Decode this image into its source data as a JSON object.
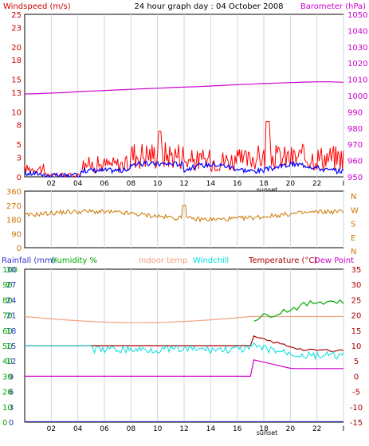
{
  "chart_data": [
    {
      "type": "line",
      "title": "24 hour graph day : 04 October 2008",
      "left_axis_label": "Windspeed (m/s)",
      "right_axis_label": "Barometer (hPa)",
      "left_ticks": [
        "25",
        "23",
        "20",
        "18",
        "15",
        "13",
        "10",
        "8",
        "5",
        "3",
        "0"
      ],
      "right_ticks": [
        "1050",
        "1040",
        "1030",
        "1020",
        "1010",
        "1000",
        "990",
        "980",
        "970",
        "960",
        "950"
      ],
      "x_ticks": [
        "02",
        "04",
        "06",
        "08",
        "10",
        "12",
        "14",
        "16",
        "18",
        "20",
        "22",
        "I"
      ],
      "marker_label": "sunset",
      "ylim_left": [
        0,
        25
      ],
      "ylim_right": [
        950,
        1050
      ],
      "series": [
        {
          "name": "Windspeed",
          "color": "#ff0000"
        },
        {
          "name": "Average windspeed",
          "color": "#0000ff"
        },
        {
          "name": "Barometer",
          "color": "#cc00cc",
          "values": [
            1001.0,
            1001.2,
            1001.5,
            1001.9,
            1002.4,
            1002.8,
            1003.1,
            1003.5,
            1003.8,
            1004.2,
            1004.5,
            1004.9,
            1005.2,
            1005.5,
            1005.9,
            1006.3,
            1006.7,
            1007.0,
            1007.4,
            1007.7,
            1008.0,
            1008.3,
            1008.5,
            1008.5,
            1008.2
          ]
        }
      ]
    },
    {
      "type": "line",
      "left_ticks": [
        "360",
        "270",
        "180",
        "90",
        "0"
      ],
      "right_ticks": [
        "N",
        "W",
        "S",
        "E",
        "N"
      ],
      "ylim": [
        0,
        360
      ],
      "series": [
        {
          "name": "Wind direction",
          "color": "#cc7700"
        }
      ]
    },
    {
      "type": "line",
      "legend": [
        {
          "label": "Rainfall (mm)",
          "color": "#3333cc"
        },
        {
          "label": "Humidity %",
          "color": "#00aa00"
        },
        {
          "label": "Indoor temp",
          "color": "#f0a080"
        },
        {
          "label": "Windchill",
          "color": "#00dddd"
        },
        {
          "label": "Temperature (°C)",
          "color": "#aa0000"
        },
        {
          "label": "Dew Point",
          "color": "#cc00cc"
        }
      ],
      "rain_ticks": [
        "30",
        "27",
        "24",
        "21",
        "18",
        "15",
        "12",
        "9",
        "6",
        "3",
        "0"
      ],
      "humidity_ticks": [
        "100",
        "90",
        "80",
        "70",
        "60",
        "50",
        "40",
        "30",
        "20",
        "10",
        "0"
      ],
      "temp_ticks": [
        "35",
        "30",
        "25",
        "20",
        "15",
        "10",
        "5",
        "0",
        "-5",
        "-10",
        "-15"
      ],
      "x_ticks": [
        "02",
        "04",
        "06",
        "08",
        "10",
        "12",
        "14",
        "16",
        "18",
        "20",
        "22",
        "I"
      ],
      "marker_label": "sunset",
      "ylim_temp": [
        -15,
        35
      ],
      "ylim_humidity": [
        0,
        100
      ],
      "ylim_rain": [
        0,
        30
      ]
    }
  ]
}
